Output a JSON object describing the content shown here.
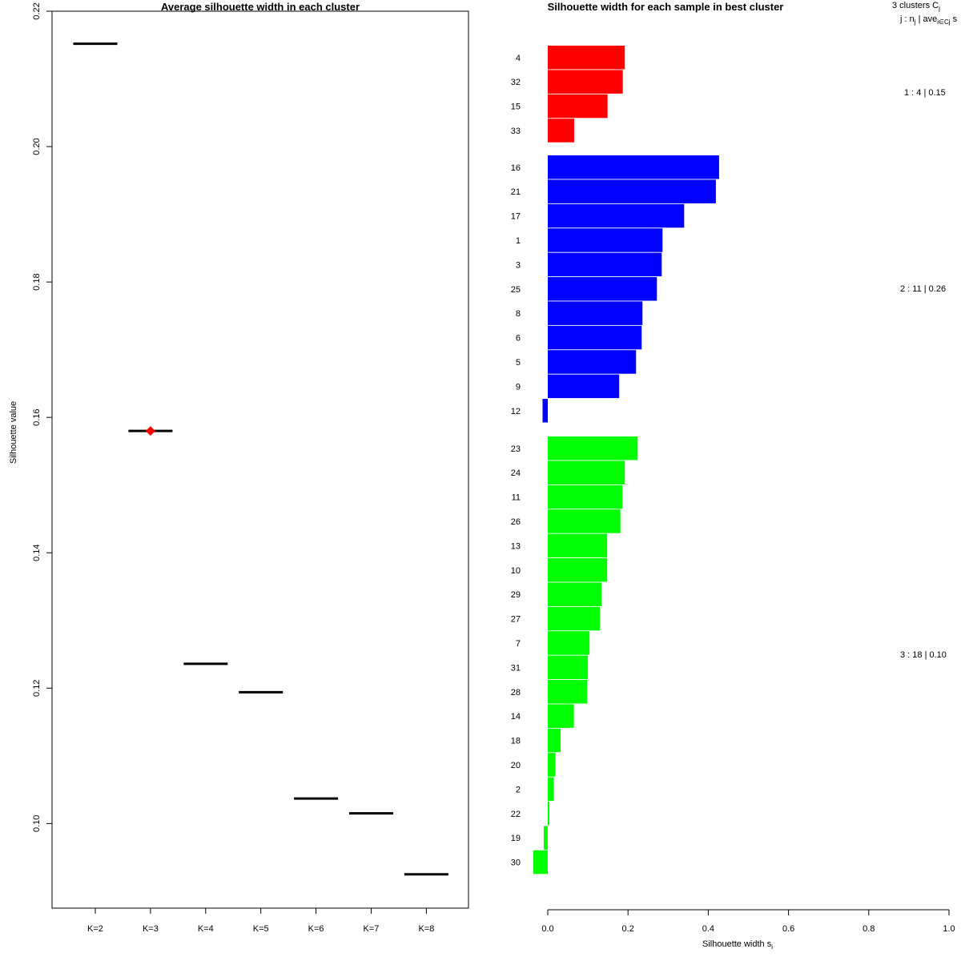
{
  "chart_data": [
    {
      "type": "line",
      "title": "Average silhouette width in each cluster",
      "xlabel": "",
      "ylabel": "Silhouette value",
      "categories": [
        "K=2",
        "K=3",
        "K=4",
        "K=5",
        "K=6",
        "K=7",
        "K=8"
      ],
      "values": [
        0.2152,
        0.158,
        0.1236,
        0.1194,
        0.1037,
        0.1015,
        0.0925
      ],
      "ylim": [
        0.0875,
        0.22
      ],
      "yticks": [
        "0.10",
        "0.12",
        "0.14",
        "0.16",
        "0.18",
        "0.20",
        "0.22"
      ],
      "best_k": "K=3",
      "best_marker_color": "#ff0000",
      "segment_color": "#000000"
    },
    {
      "type": "bar",
      "title": "Silhouette width for each sample in best cluster",
      "xlabel": "Silhouette width s",
      "xlabel_subscript": "i",
      "xlim": [
        0,
        1
      ],
      "xticks": [
        "0.0",
        "0.2",
        "0.4",
        "0.6",
        "0.8",
        "1.0"
      ],
      "header": {
        "line1": "3  clusters  C",
        "line1_sub": "j",
        "line2": "j :  n",
        "line2_sub": "j",
        "line2_mid": " | ave",
        "line2_sub2": "i∈Cj",
        "line2_end": "  s"
      },
      "clusters": [
        {
          "id": 1,
          "n": 4,
          "ave": "0.15",
          "color": "#ff0000",
          "summary": "1 :  4  |  0.15",
          "samples": [
            "4",
            "32",
            "15",
            "33"
          ],
          "values": [
            0.192,
            0.187,
            0.149,
            0.066
          ]
        },
        {
          "id": 2,
          "n": 11,
          "ave": "0.26",
          "color": "#0000ff",
          "summary": "2 :  11  |  0.26",
          "samples": [
            "16",
            "21",
            "17",
            "1",
            "3",
            "25",
            "8",
            "6",
            "5",
            "9",
            "12"
          ],
          "values": [
            0.427,
            0.419,
            0.34,
            0.286,
            0.284,
            0.272,
            0.236,
            0.234,
            0.22,
            0.178,
            -0.013
          ]
        },
        {
          "id": 3,
          "n": 18,
          "ave": "0.10",
          "color": "#00ff00",
          "summary": "3 :  18  |  0.10",
          "samples": [
            "23",
            "24",
            "11",
            "26",
            "13",
            "10",
            "29",
            "27",
            "7",
            "31",
            "28",
            "14",
            "18",
            "20",
            "2",
            "22",
            "19",
            "30"
          ],
          "values": [
            0.224,
            0.192,
            0.186,
            0.181,
            0.148,
            0.148,
            0.134,
            0.13,
            0.104,
            0.1,
            0.098,
            0.065,
            0.032,
            0.019,
            0.015,
            0.004,
            -0.01,
            -0.036
          ]
        }
      ]
    }
  ]
}
